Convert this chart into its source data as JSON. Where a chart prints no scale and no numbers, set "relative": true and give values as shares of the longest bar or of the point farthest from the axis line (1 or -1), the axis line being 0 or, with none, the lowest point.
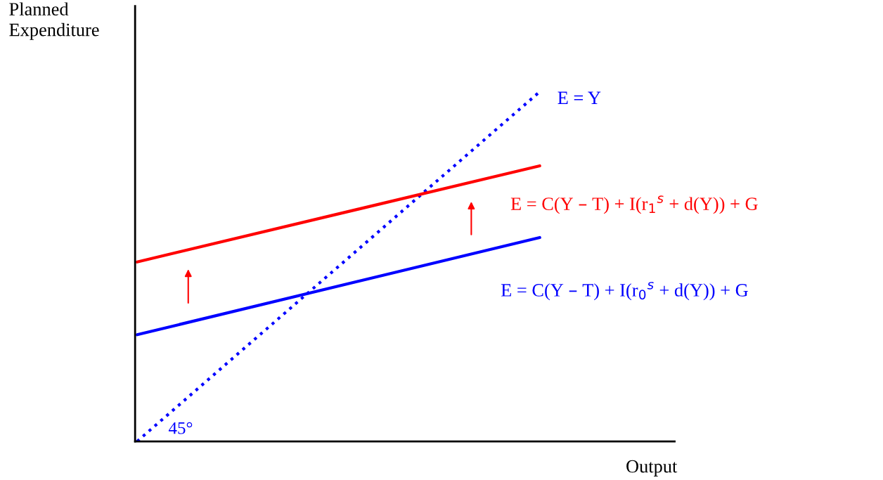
{
  "chart_data": {
    "type": "line",
    "relative": true,
    "xlabel": "Output",
    "ylabel": "Planned\nExpenditure",
    "annotations": [
      "45°"
    ],
    "categories": [
      null,
      null
    ],
    "series": [
      {
        "name": "E = Y",
        "color": "#0000ff",
        "line_style": "dotted",
        "values": [
          0.0,
          1.0
        ]
      },
      {
        "name": "E = C(Y – T) + I(r$_{1}$$^{s}$ + d(Y)) + G",
        "color": "#ff0000",
        "line_style": "solid",
        "values": [
          0.513,
          0.788
        ]
      },
      {
        "name": "E = C(Y – T) + I(r$_{0}$$^{s}$ + d(Y)) + G",
        "color": "#0000ff",
        "line_style": "solid",
        "values": [
          0.305,
          0.583
        ]
      }
    ]
  }
}
